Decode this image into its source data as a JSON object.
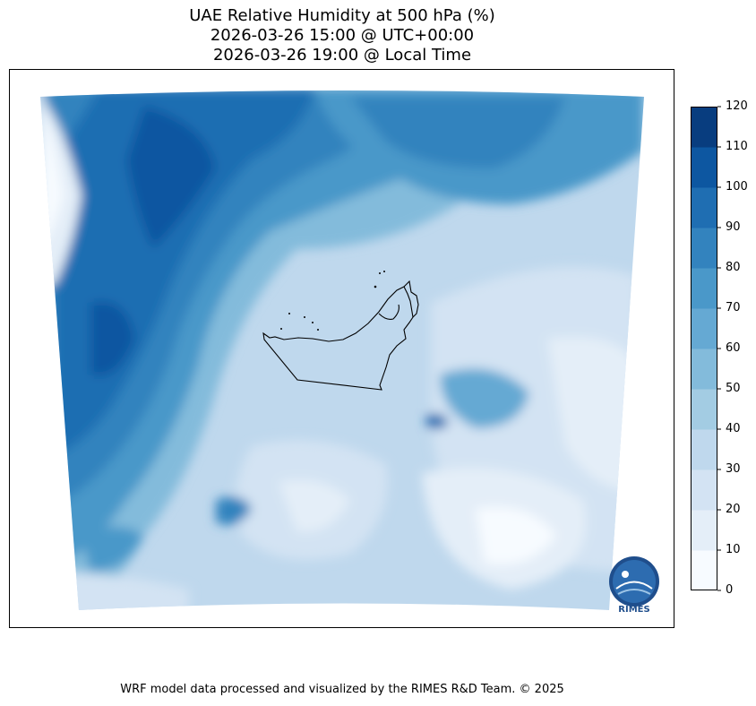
{
  "title": {
    "line1": "UAE Relative Humidity at 500 hPa (%)",
    "line2": "2026-03-26 15:00 @ UTC+00:00",
    "line3": "2026-03-26 19:00 @ Local Time"
  },
  "colorbar": {
    "ticks": [
      "0",
      "10",
      "20",
      "30",
      "40",
      "50",
      "60",
      "70",
      "80",
      "90",
      "100",
      "110",
      "120"
    ],
    "min": 0,
    "max": 120,
    "step": 10,
    "colors": [
      "#f7fbff",
      "#e4eef8",
      "#d3e3f3",
      "#bfd8ed",
      "#a3cce3",
      "#83bbdb",
      "#65a9d3",
      "#4a98c9",
      "#3383be",
      "#1f6eb2",
      "#0d57a1",
      "#083d7f"
    ]
  },
  "map": {
    "region": "UAE",
    "boundary_color": "#000000"
  },
  "logo": {
    "text": "RIMES"
  },
  "footer": {
    "credit": "WRF model data processed and visualized by the RIMES R&D Team. © 2025"
  }
}
